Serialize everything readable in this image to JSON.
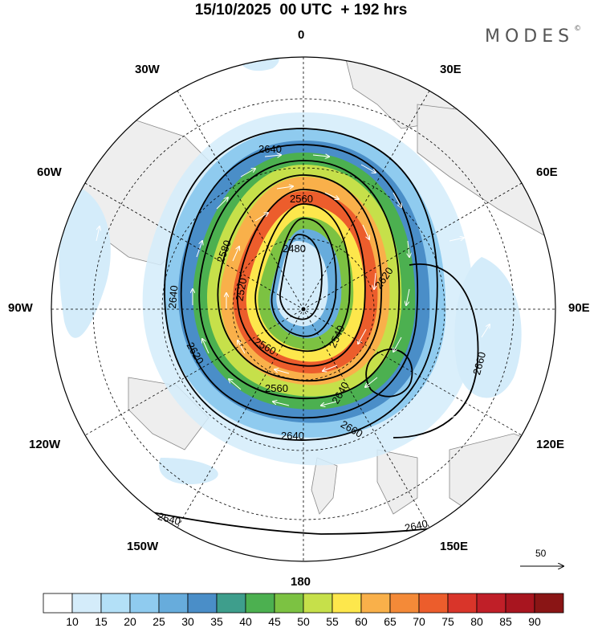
{
  "title": "15/10/2025  00 UTC  + 192 hrs",
  "brand": {
    "text": "MODES",
    "mark": "©"
  },
  "longitude_labels": {
    "top": "0",
    "bottom": "180",
    "left": "90W",
    "right": "90E",
    "nw1": "30W",
    "nw2": "60W",
    "ne1": "30E",
    "ne2": "60E",
    "sw1": "120W",
    "sw2": "150W",
    "se1": "120E",
    "se2": "150E"
  },
  "contour_labels": [
    "2640",
    "2560",
    "2480",
    "2580",
    "2520",
    "2620",
    "2640",
    "2560",
    "2540",
    "2620",
    "2560",
    "2640",
    "2640",
    "2660",
    "2660",
    "2640",
    "2640"
  ],
  "reference_vector": {
    "label": "50"
  },
  "colorbar": {
    "labels": [
      "10",
      "15",
      "20",
      "25",
      "30",
      "35",
      "40",
      "45",
      "50",
      "55",
      "60",
      "65",
      "70",
      "75",
      "80",
      "85",
      "90"
    ],
    "colors": [
      "#ffffff",
      "#d4ecfa",
      "#b3e0f7",
      "#8fcbef",
      "#67acdc",
      "#4a8ec8",
      "#3e9e8c",
      "#4cb050",
      "#7cc242",
      "#c6e04a",
      "#fde74c",
      "#f9b04a",
      "#f48a38",
      "#ec5d2c",
      "#d9352a",
      "#c01f28",
      "#a8151f",
      "#8a1515"
    ]
  }
}
